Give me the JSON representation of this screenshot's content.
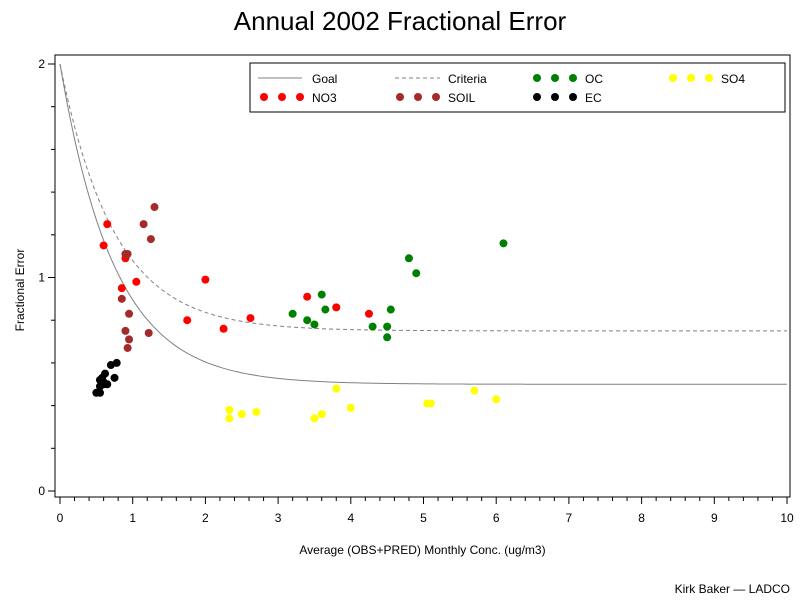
{
  "chart_data": {
    "type": "scatter",
    "title": "Annual 2002 Fractional Error",
    "xlabel": "Average (OBS+PRED) Monthly Conc. (ug/m3)",
    "ylabel": "Fractional Error",
    "xlim": [
      0,
      10
    ],
    "ylim": [
      0,
      2
    ],
    "xticks": [
      "0",
      "1",
      "2",
      "3",
      "4",
      "5",
      "6",
      "7",
      "8",
      "9",
      "10"
    ],
    "yticks": [
      "0",
      "1",
      "2"
    ],
    "legend_position": "top-right",
    "reference_lines": [
      {
        "name": "Goal",
        "style": "solid",
        "color": "#808080",
        "asymptote": 0.5,
        "equation": "0.5 + 1.5*exp(-x/0.75)"
      },
      {
        "name": "Criteria",
        "style": "dashed",
        "color": "#808080",
        "asymptote": 0.75,
        "equation": "0.75 + 1.25*exp(-x/0.75)"
      }
    ],
    "series": [
      {
        "name": "NO3",
        "color": "#ff0000",
        "points": [
          [
            0.6,
            1.15
          ],
          [
            0.65,
            1.25
          ],
          [
            0.9,
            1.09
          ],
          [
            0.85,
            0.95
          ],
          [
            1.05,
            0.98
          ],
          [
            1.75,
            0.8
          ],
          [
            2.0,
            0.99
          ],
          [
            2.25,
            0.76
          ],
          [
            2.62,
            0.81
          ],
          [
            3.4,
            0.91
          ],
          [
            3.8,
            0.86
          ],
          [
            4.25,
            0.83
          ]
        ]
      },
      {
        "name": "SOIL",
        "color": "#a52a2a",
        "points": [
          [
            1.3,
            1.33
          ],
          [
            1.15,
            1.25
          ],
          [
            1.25,
            1.18
          ],
          [
            0.9,
            1.11
          ],
          [
            0.93,
            1.11
          ],
          [
            0.85,
            0.9
          ],
          [
            0.95,
            0.83
          ],
          [
            0.9,
            0.75
          ],
          [
            1.22,
            0.74
          ],
          [
            0.95,
            0.71
          ],
          [
            0.93,
            0.67
          ]
        ]
      },
      {
        "name": "OC",
        "color": "#008000",
        "points": [
          [
            3.2,
            0.83
          ],
          [
            3.4,
            0.8
          ],
          [
            3.5,
            0.78
          ],
          [
            3.6,
            0.92
          ],
          [
            3.65,
            0.85
          ],
          [
            4.3,
            0.77
          ],
          [
            4.5,
            0.77
          ],
          [
            4.5,
            0.72
          ],
          [
            4.55,
            0.85
          ],
          [
            4.8,
            1.09
          ],
          [
            4.9,
            1.02
          ],
          [
            6.1,
            1.16
          ]
        ]
      },
      {
        "name": "EC",
        "color": "#000000",
        "points": [
          [
            0.5,
            0.46
          ],
          [
            0.55,
            0.46
          ],
          [
            0.55,
            0.49
          ],
          [
            0.6,
            0.51
          ],
          [
            0.58,
            0.53
          ],
          [
            0.65,
            0.5
          ],
          [
            0.62,
            0.55
          ],
          [
            0.7,
            0.59
          ],
          [
            0.78,
            0.6
          ],
          [
            0.75,
            0.53
          ],
          [
            0.6,
            0.5
          ],
          [
            0.55,
            0.52
          ]
        ]
      },
      {
        "name": "SO4",
        "color": "#ffff00",
        "points": [
          [
            2.33,
            0.38
          ],
          [
            2.33,
            0.34
          ],
          [
            2.5,
            0.36
          ],
          [
            2.7,
            0.37
          ],
          [
            3.5,
            0.34
          ],
          [
            3.6,
            0.36
          ],
          [
            3.8,
            0.48
          ],
          [
            4.0,
            0.39
          ],
          [
            5.05,
            0.41
          ],
          [
            5.1,
            0.41
          ],
          [
            5.7,
            0.47
          ],
          [
            6.0,
            0.43
          ]
        ]
      }
    ],
    "credit": "Kirk Baker — LADCO"
  }
}
